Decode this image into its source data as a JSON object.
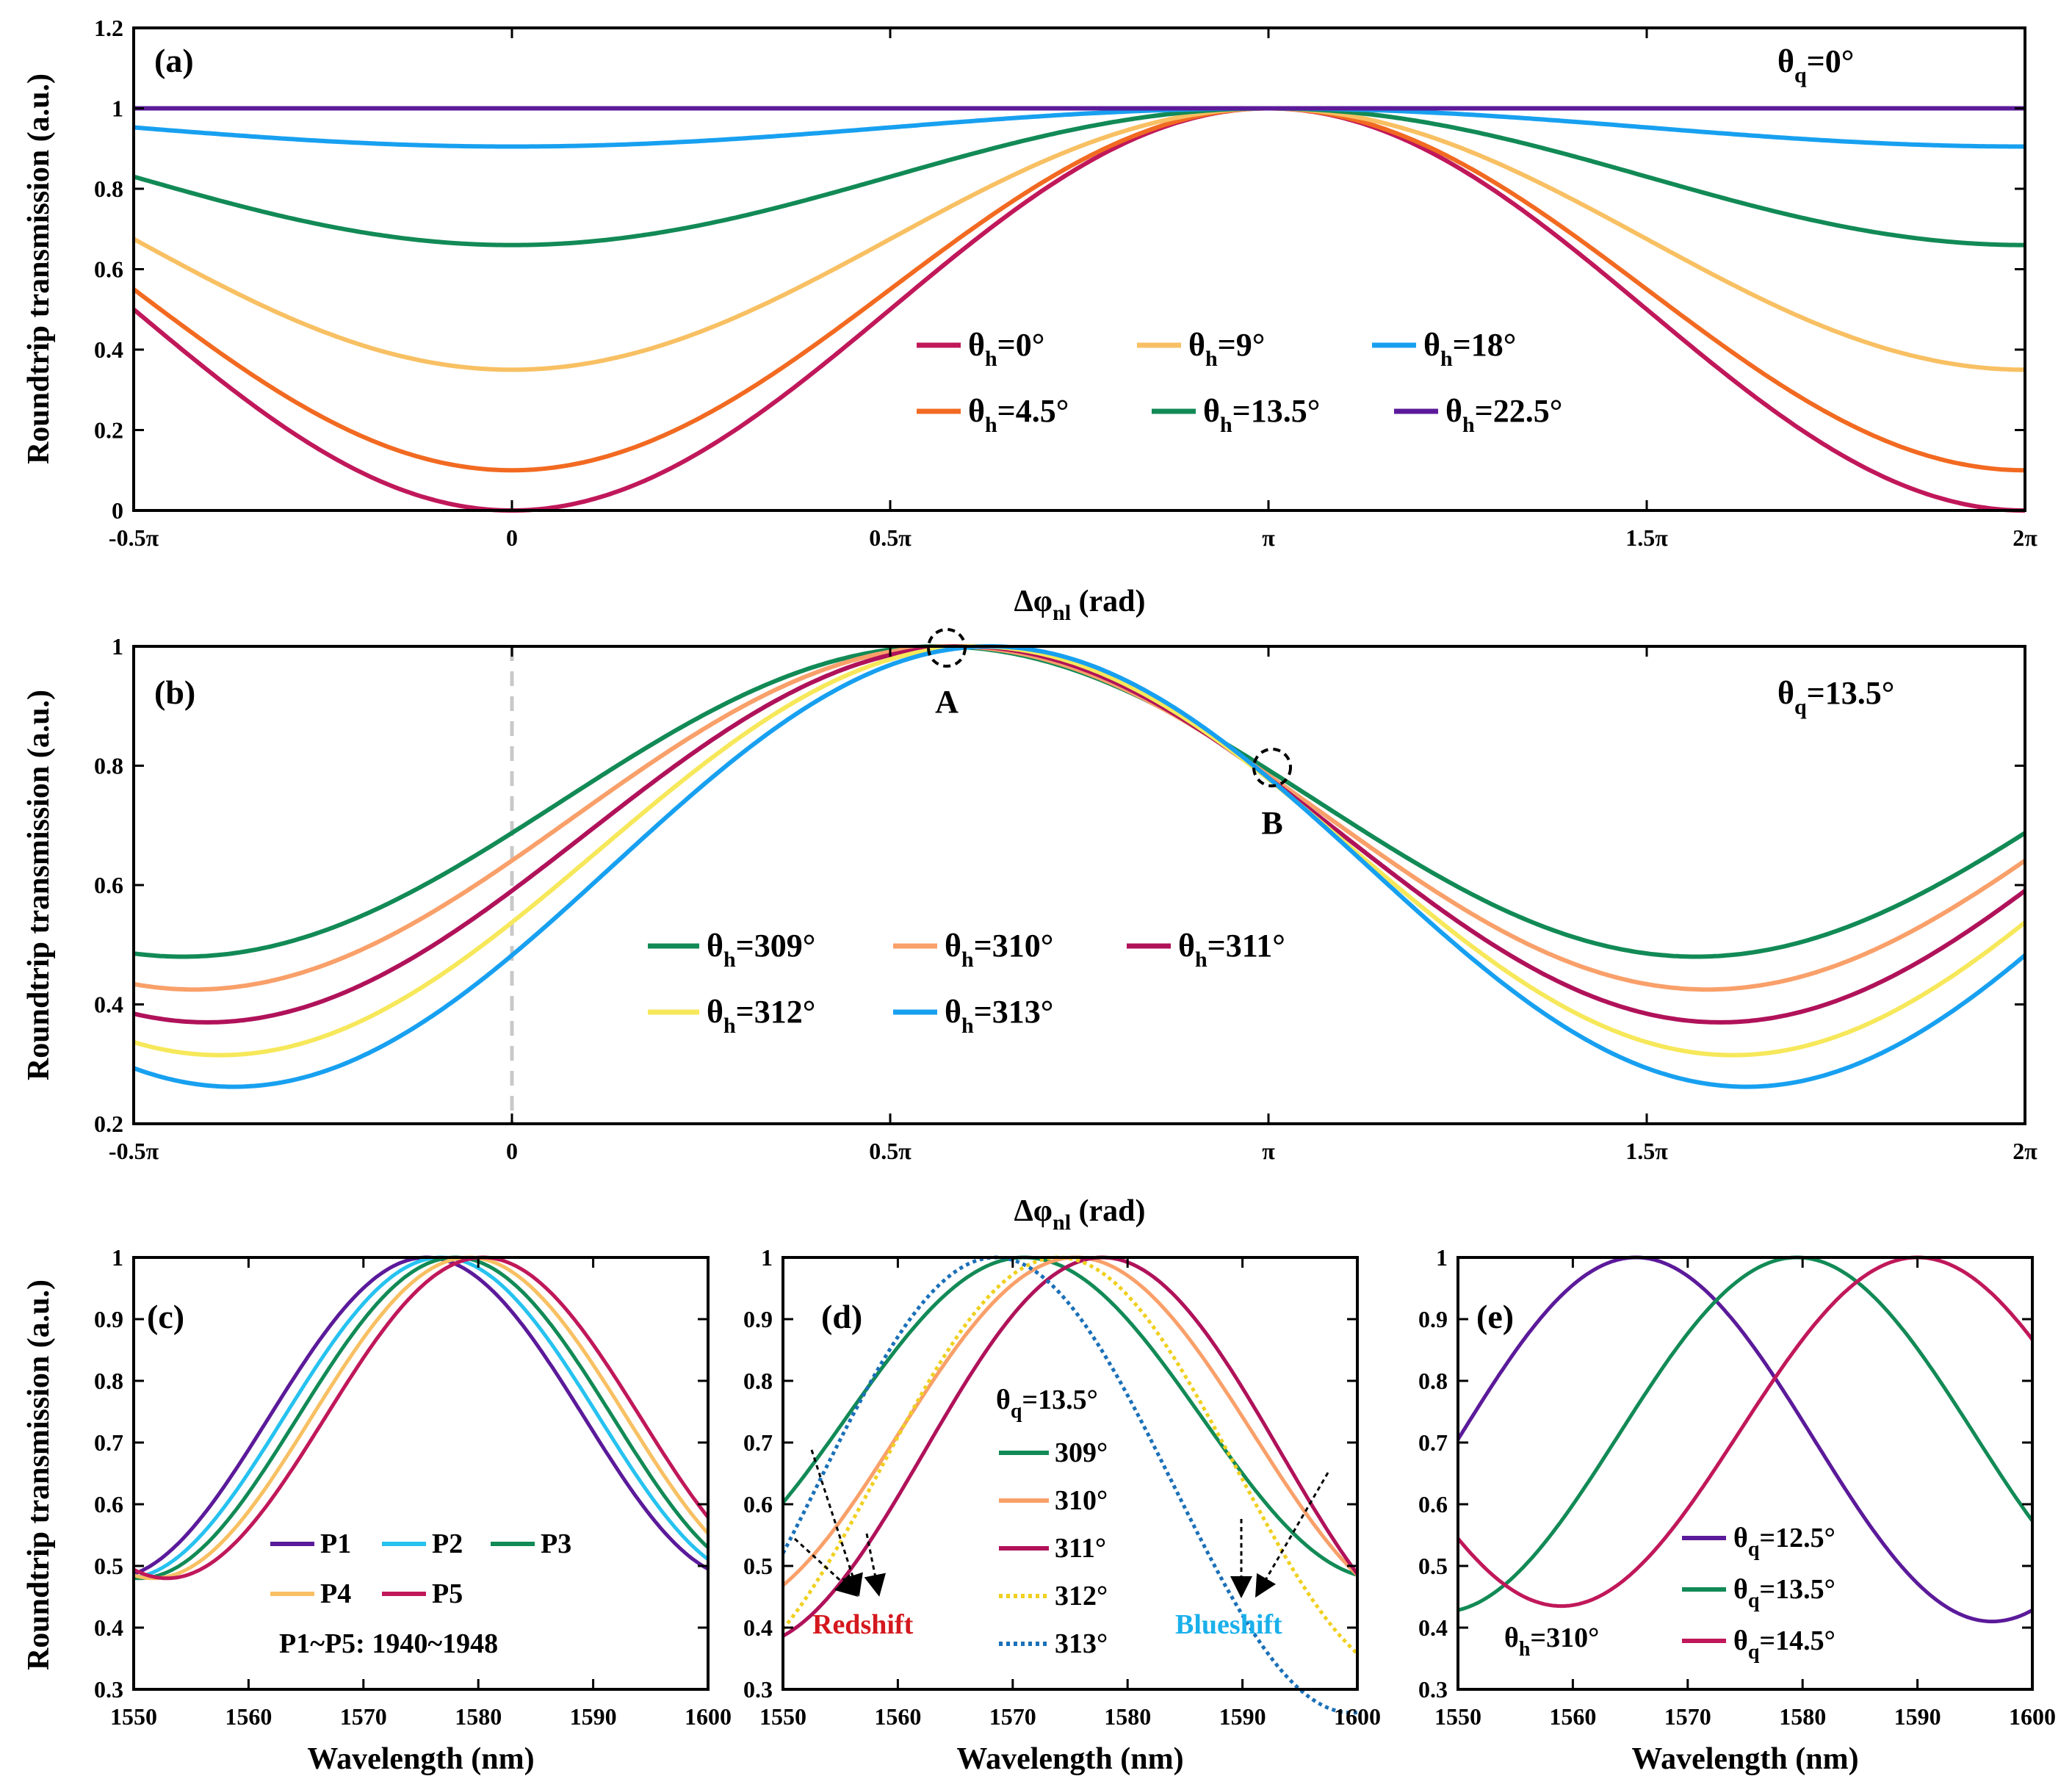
{
  "chart_data": [
    {
      "id": "a",
      "type": "line",
      "panel_label": "(a)",
      "annotation_main": "θ",
      "annotation_sub": "q",
      "annotation_tail": "=0°",
      "xlabel_main": "Δφ",
      "xlabel_sub": "nl",
      "xlabel_tail": " (rad)",
      "ylabel": "Roundtrip transmission (a.u.)",
      "xlim": [
        -0.5,
        2.0
      ],
      "ylim": [
        0,
        1.2
      ],
      "xticks": [
        -0.5,
        0,
        0.5,
        1,
        1.5,
        2
      ],
      "xticklabels": [
        "-0.5π",
        "0",
        "0.5π",
        "π",
        "1.5π",
        "2π"
      ],
      "yticks": [
        0,
        0.2,
        0.4,
        0.6,
        0.8,
        1,
        1.2
      ],
      "yticklabels": [
        "0",
        "0.2",
        "0.4",
        "0.6",
        "0.8",
        "1",
        "1.2"
      ],
      "x_unit": "multiples of π rad",
      "model": "T = 1 - d*cos²(Δφ·π/2)",
      "series": [
        {
          "label_main": "θ",
          "label_sub": "h",
          "label_tail": "=0°",
          "color": "#c0185a",
          "min": 0.0
        },
        {
          "label_main": "θ",
          "label_sub": "h",
          "label_tail": "=4.5°",
          "color": "#f26a21",
          "min": 0.1
        },
        {
          "label_main": "θ",
          "label_sub": "h",
          "label_tail": "=9°",
          "color": "#f8c063",
          "min": 0.35
        },
        {
          "label_main": "θ",
          "label_sub": "h",
          "label_tail": "=13.5°",
          "color": "#128a56",
          "min": 0.66
        },
        {
          "label_main": "θ",
          "label_sub": "h",
          "label_tail": "=18°",
          "color": "#18a0f0",
          "min": 0.905
        },
        {
          "label_main": "θ",
          "label_sub": "h",
          "label_tail": "=22.5°",
          "color": "#5b1a9a",
          "min": 1.0
        }
      ]
    },
    {
      "id": "b",
      "type": "line",
      "panel_label": "(b)",
      "annotation_main": "θ",
      "annotation_sub": "q",
      "annotation_tail": "=13.5°",
      "xlabel_main": "Δφ",
      "xlabel_sub": "nl",
      "xlabel_tail": " (rad)",
      "ylabel": "Roundtrip transmission (a.u.)",
      "xlim": [
        -0.5,
        2.0
      ],
      "ylim": [
        0.2,
        1.0
      ],
      "xticks": [
        -0.5,
        0,
        0.5,
        1,
        1.5,
        2
      ],
      "xticklabels": [
        "-0.5π",
        "0",
        "0.5π",
        "π",
        "1.5π",
        "2π"
      ],
      "yticks": [
        0.2,
        0.4,
        0.6,
        0.8,
        1
      ],
      "yticklabels": [
        "0.2",
        "0.4",
        "0.6",
        "0.8",
        "1"
      ],
      "marker_A": {
        "label": "A",
        "x": 0.57,
        "y": 1.0
      },
      "marker_B": {
        "label": "B",
        "x": 1.0,
        "y": 0.8
      },
      "dashed_line_x": 0,
      "series": [
        {
          "label_main": "θ",
          "label_sub": "h",
          "label_tail": "=309°",
          "color": "#128a56",
          "min": 0.48,
          "peak_x": 0.565
        },
        {
          "label_main": "θ",
          "label_sub": "h",
          "label_tail": "=310°",
          "color": "#f9a06a",
          "min": 0.425,
          "peak_x": 0.58
        },
        {
          "label_main": "θ",
          "label_sub": "h",
          "label_tail": "=311°",
          "color": "#b0125a",
          "min": 0.37,
          "peak_x": 0.597
        },
        {
          "label_main": "θ",
          "label_sub": "h",
          "label_tail": "=312°",
          "color": "#f6e85a",
          "min": 0.315,
          "peak_x": 0.614
        },
        {
          "label_main": "θ",
          "label_sub": "h",
          "label_tail": "=313°",
          "color": "#18a0f0",
          "min": 0.262,
          "peak_x": 0.632
        }
      ]
    },
    {
      "id": "c",
      "type": "line",
      "panel_label": "(c)",
      "xlabel": "Wavelength (nm)",
      "ylabel": "Roundtrip transmission (a.u.)",
      "xlim": [
        1550,
        1600
      ],
      "ylim": [
        0.3,
        1.0
      ],
      "xticks": [
        1550,
        1560,
        1570,
        1580,
        1590,
        1600
      ],
      "yticks": [
        0.3,
        0.4,
        0.5,
        0.6,
        0.7,
        0.8,
        0.9,
        1
      ],
      "yticklabels": [
        "0.3",
        "0.4",
        "0.5",
        "0.6",
        "0.7",
        "0.8",
        "0.9",
        "1"
      ],
      "note": "P1~P5: 1940~1948",
      "period_nm": 55,
      "series": [
        {
          "name": "P1",
          "color": "#5b1a9a",
          "peak": 1575.5,
          "min": 0.48
        },
        {
          "name": "P2",
          "color": "#26c2f0",
          "peak": 1576.8,
          "min": 0.48
        },
        {
          "name": "P3",
          "color": "#128a56",
          "peak": 1578.0,
          "min": 0.48
        },
        {
          "name": "P4",
          "color": "#f8c063",
          "peak": 1579.2,
          "min": 0.48
        },
        {
          "name": "P5",
          "color": "#c0185a",
          "peak": 1580.4,
          "min": 0.48
        }
      ]
    },
    {
      "id": "d",
      "type": "line",
      "panel_label": "(d)",
      "xlabel": "Wavelength (nm)",
      "xlim": [
        1550,
        1600
      ],
      "ylim": [
        0.3,
        1.0
      ],
      "xticks": [
        1550,
        1560,
        1570,
        1580,
        1590,
        1600
      ],
      "yticks": [
        0.3,
        0.4,
        0.5,
        0.6,
        0.7,
        0.8,
        0.9,
        1
      ],
      "yticklabels": [
        "0.3",
        "0.4",
        "0.5",
        "0.6",
        "0.7",
        "0.8",
        "0.9",
        "1"
      ],
      "legend_title_main": "θ",
      "legend_title_sub": "q",
      "legend_title_tail": "=13.5°",
      "annotations": [
        {
          "text": "Redshift",
          "color": "#d4181e"
        },
        {
          "text": "Blueshift",
          "color": "#1ab0ea"
        }
      ],
      "period_nm": 62,
      "series": [
        {
          "name": "309°",
          "color": "#128a56",
          "peak": 1571.0,
          "min": 0.48,
          "dotted": false
        },
        {
          "name": "310°",
          "color": "#f9a06a",
          "peak": 1575.5,
          "min": 0.425,
          "dotted": false
        },
        {
          "name": "311°",
          "color": "#b0125a",
          "peak": 1577.8,
          "min": 0.37,
          "dotted": false
        },
        {
          "name": "312°",
          "color": "#f0d020",
          "peak": 1574.0,
          "min": 0.315,
          "dotted": true
        },
        {
          "name": "313°",
          "color": "#1a70b8",
          "peak": 1568.5,
          "min": 0.262,
          "dotted": true
        }
      ]
    },
    {
      "id": "e",
      "type": "line",
      "panel_label": "(e)",
      "xlabel": "Wavelength (nm)",
      "xlim": [
        1550,
        1600
      ],
      "ylim": [
        0.3,
        1.0
      ],
      "xticks": [
        1550,
        1560,
        1570,
        1580,
        1590,
        1600
      ],
      "yticks": [
        0.3,
        0.4,
        0.5,
        0.6,
        0.7,
        0.8,
        0.9,
        1
      ],
      "yticklabels": [
        "0.3",
        "0.4",
        "0.5",
        "0.6",
        "0.7",
        "0.8",
        "0.9",
        "1"
      ],
      "annotation_main": "θ",
      "annotation_sub": "h",
      "annotation_tail": "=310°",
      "period_nm": 62,
      "series": [
        {
          "label_main": "θ",
          "label_sub": "q",
          "label_tail": "=12.5°",
          "color": "#5b1a9a",
          "peak": 1565.5,
          "min": 0.41
        },
        {
          "label_main": "θ",
          "label_sub": "q",
          "label_tail": "=13.5°",
          "color": "#128a56",
          "peak": 1579.5,
          "min": 0.425
        },
        {
          "label_main": "θ",
          "label_sub": "q",
          "label_tail": "=14.5°",
          "color": "#c0185a",
          "peak": 1590.0,
          "min": 0.435
        }
      ]
    }
  ]
}
